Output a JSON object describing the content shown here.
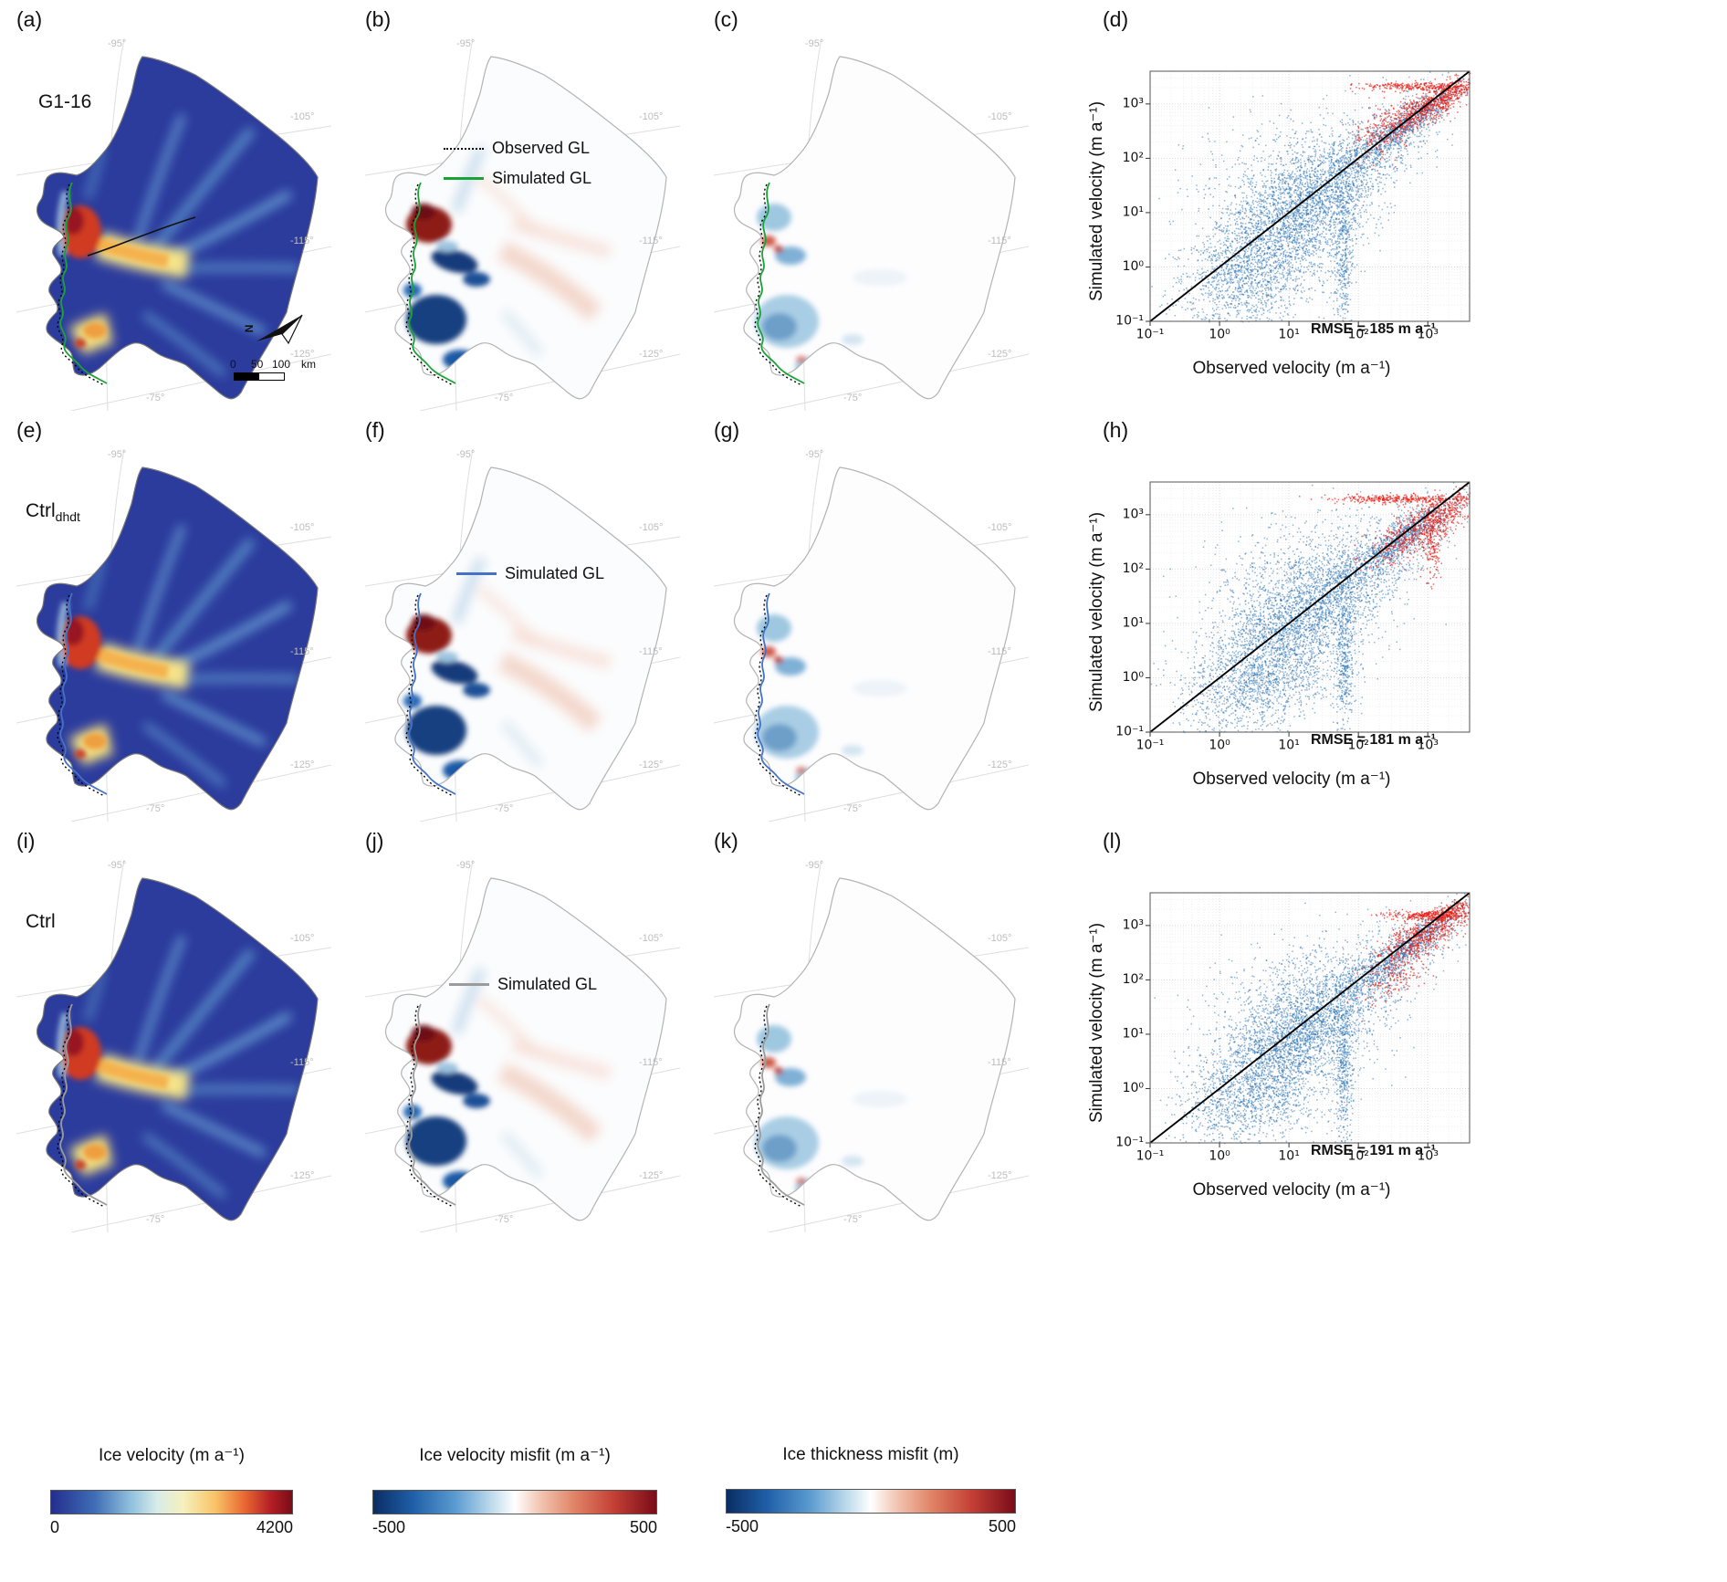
{
  "panels": {
    "a": {
      "label": "(a)",
      "run_label": "G1-16"
    },
    "b": {
      "label": "(b)"
    },
    "c": {
      "label": "(c)"
    },
    "d": {
      "label": "(d)"
    },
    "e": {
      "label": "(e)",
      "run_label": "Ctrl",
      "run_sub": "dhdt"
    },
    "f": {
      "label": "(f)"
    },
    "g": {
      "label": "(g)"
    },
    "h": {
      "label": "(h)"
    },
    "i": {
      "label": "(i)",
      "run_label": "Ctrl"
    },
    "j": {
      "label": "(j)"
    },
    "k": {
      "label": "(k)"
    },
    "l": {
      "label": "(l)"
    }
  },
  "legends": {
    "b": {
      "items": [
        {
          "label": "Observed GL",
          "color": "#000000",
          "dash": "dotted"
        },
        {
          "label": "Simulated GL",
          "color": "#19a337",
          "dash": "solid"
        }
      ]
    },
    "f": {
      "items": [
        {
          "label": "Simulated GL",
          "color": "#4472c4",
          "dash": "solid"
        }
      ]
    },
    "j": {
      "items": [
        {
          "label": "Simulated GL",
          "color": "#9b9b9b",
          "dash": "solid"
        }
      ]
    }
  },
  "graticule_labels": [
    "-95°",
    "-105°",
    "-115°",
    "-125°",
    "-75°"
  ],
  "scalebar": {
    "t0": "0",
    "t1": "50",
    "t2": "100",
    "unit": "km"
  },
  "north_label": "N",
  "colorbars": [
    {
      "title": "Ice velocity (m a⁻¹)",
      "min": "0",
      "max": "4200"
    },
    {
      "title": "Ice velocity misfit (m a⁻¹)",
      "min": "-500",
      "max": "500"
    },
    {
      "title": "Ice thickness misfit (m)",
      "min": "-500",
      "max": "500"
    }
  ],
  "chart_data": [
    {
      "panel": "d",
      "type": "scatter",
      "xlabel": "Observed velocity (m a⁻¹)",
      "ylabel": "Simulated velocity (m a⁻¹)",
      "xscale": "log",
      "yscale": "log",
      "xlim": [
        0.1,
        4000
      ],
      "ylim": [
        0.1,
        4000
      ],
      "ticks": [
        0.1,
        1,
        10,
        100,
        1000
      ],
      "tick_labels": [
        "10⁻¹",
        "10⁰",
        "10¹",
        "10²",
        "10³"
      ],
      "rmse_label": "RMSE = 185 m a⁻¹",
      "identity_line": true,
      "grid": true,
      "seed": 101,
      "series": [
        {
          "name": "grounded-ice-points",
          "color": "#1f6bb0",
          "alpha": 0.5,
          "clusters": [
            [
              1.0,
              0.8,
              0.65,
              0.85,
              0.5,
              2300
            ],
            [
              1.5,
              1.45,
              0.85,
              0.85,
              0.88,
              1500
            ],
            [
              2.7,
              2.65,
              0.4,
              0.38,
              0.92,
              800
            ],
            [
              1.78,
              0.3,
              0.07,
              0.7,
              0,
              400
            ],
            [
              0.45,
              -0.25,
              0.5,
              0.45,
              0.3,
              650
            ],
            [
              1.1,
              1.95,
              0.8,
              0.55,
              0.3,
              280
            ]
          ]
        },
        {
          "name": "floating-ice-points",
          "color": "#e8190f",
          "alpha": 0.65,
          "clusters": [
            [
              2.95,
              2.95,
              0.33,
              0.28,
              0.85,
              620
            ],
            [
              2.85,
              3.33,
              0.38,
              0.04,
              0,
              260
            ],
            [
              2.4,
              2.55,
              0.25,
              0.3,
              0.5,
              200
            ],
            [
              3.3,
              3.12,
              0.15,
              0.18,
              0.7,
              140
            ]
          ]
        }
      ]
    },
    {
      "panel": "h",
      "type": "scatter",
      "xlabel": "Observed velocity (m a⁻¹)",
      "ylabel": "Simulated velocity (m a⁻¹)",
      "xscale": "log",
      "yscale": "log",
      "xlim": [
        0.1,
        4000
      ],
      "ylim": [
        0.1,
        4000
      ],
      "ticks": [
        0.1,
        1,
        10,
        100,
        1000
      ],
      "tick_labels": [
        "10⁻¹",
        "10⁰",
        "10¹",
        "10²",
        "10³"
      ],
      "rmse_label": "RMSE = 181 m a⁻¹",
      "identity_line": true,
      "grid": true,
      "seed": 202,
      "series": [
        {
          "name": "grounded-ice-points",
          "color": "#1f6bb0",
          "alpha": 0.5,
          "clusters": [
            [
              1.0,
              0.85,
              0.68,
              0.88,
              0.5,
              2300
            ],
            [
              1.55,
              1.5,
              0.85,
              0.85,
              0.86,
              1500
            ],
            [
              2.65,
              2.6,
              0.42,
              0.4,
              0.9,
              800
            ],
            [
              1.8,
              0.3,
              0.07,
              0.7,
              0,
              380
            ],
            [
              0.45,
              -0.2,
              0.5,
              0.45,
              0.3,
              600
            ],
            [
              1.2,
              2.1,
              0.8,
              0.5,
              0.3,
              300
            ]
          ]
        },
        {
          "name": "floating-ice-points",
          "color": "#e8190f",
          "alpha": 0.65,
          "clusters": [
            [
              2.85,
              2.75,
              0.35,
              0.33,
              0.75,
              600
            ],
            [
              2.55,
              3.3,
              0.55,
              0.04,
              0,
              320
            ],
            [
              3.05,
              2.45,
              0.07,
              0.35,
              0,
              170
            ],
            [
              3.3,
              3.05,
              0.15,
              0.2,
              0.6,
              130
            ]
          ]
        }
      ]
    },
    {
      "panel": "l",
      "type": "scatter",
      "xlabel": "Observed velocity (m a⁻¹)",
      "ylabel": "Simulated velocity (m a⁻¹)",
      "xscale": "log",
      "yscale": "log",
      "xlim": [
        0.1,
        4000
      ],
      "ylim": [
        0.1,
        4000
      ],
      "ticks": [
        0.1,
        1,
        10,
        100,
        1000
      ],
      "tick_labels": [
        "10⁻¹",
        "10⁰",
        "10¹",
        "10²",
        "10³"
      ],
      "rmse_label": "RMSE = 191 m a⁻¹",
      "identity_line": true,
      "grid": true,
      "seed": 303,
      "series": [
        {
          "name": "grounded-ice-points",
          "color": "#1f6bb0",
          "alpha": 0.5,
          "clusters": [
            [
              1.0,
              0.8,
              0.65,
              0.85,
              0.5,
              2300
            ],
            [
              1.5,
              1.4,
              0.85,
              0.82,
              0.88,
              1500
            ],
            [
              2.7,
              2.6,
              0.4,
              0.38,
              0.9,
              780
            ],
            [
              1.78,
              0.3,
              0.07,
              0.7,
              0,
              400
            ],
            [
              0.45,
              -0.25,
              0.5,
              0.45,
              0.3,
              620
            ],
            [
              1.1,
              1.9,
              0.75,
              0.5,
              0.3,
              260
            ]
          ]
        },
        {
          "name": "floating-ice-points",
          "color": "#e8190f",
          "alpha": 0.65,
          "clusters": [
            [
              2.9,
              2.82,
              0.35,
              0.3,
              0.8,
              640
            ],
            [
              3.0,
              3.2,
              0.3,
              0.045,
              0,
              300
            ],
            [
              2.5,
              2.05,
              0.2,
              0.22,
              0.5,
              150
            ],
            [
              3.35,
              3.3,
              0.12,
              0.1,
              0.6,
              120
            ]
          ]
        }
      ]
    }
  ]
}
